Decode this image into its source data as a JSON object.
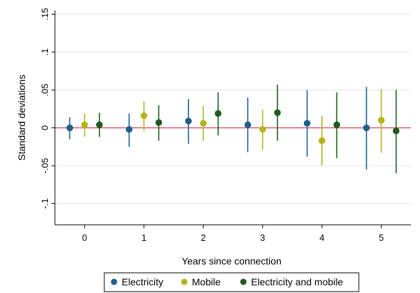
{
  "chart_data": {
    "type": "scatter",
    "title": "",
    "xlabel": "Years since connection",
    "ylabel": "Standard deviations",
    "x_ticks": [
      0,
      1,
      2,
      3,
      4,
      5
    ],
    "y_ticks": [
      -0.1,
      -0.05,
      0,
      0.05,
      0.1,
      0.15
    ],
    "y_tick_labels": [
      "-.1",
      "-.05",
      "0",
      ".05",
      ".1",
      ".15"
    ],
    "xlim": [
      -0.5,
      5.5
    ],
    "ylim": [
      -0.128,
      0.155
    ],
    "grid": "horizontal",
    "reference_line": {
      "y": 0,
      "color": "#d6334f"
    },
    "legend_position": "bottom",
    "series": [
      {
        "name": "Electricity",
        "color": "#1f5f8b",
        "offset": -0.25,
        "points": [
          {
            "x": 0,
            "y": 0.0,
            "lo": -0.015,
            "hi": 0.014
          },
          {
            "x": 1,
            "y": -0.002,
            "lo": -0.025,
            "hi": 0.019
          },
          {
            "x": 2,
            "y": 0.009,
            "lo": -0.021,
            "hi": 0.038
          },
          {
            "x": 3,
            "y": 0.004,
            "lo": -0.032,
            "hi": 0.04
          },
          {
            "x": 4,
            "y": 0.006,
            "lo": -0.038,
            "hi": 0.05
          },
          {
            "x": 5,
            "y": 0.0,
            "lo": -0.055,
            "hi": 0.054
          }
        ]
      },
      {
        "name": "Mobile",
        "color": "#b5b31b",
        "offset": 0.0,
        "points": [
          {
            "x": 0,
            "y": 0.004,
            "lo": -0.012,
            "hi": 0.019
          },
          {
            "x": 1,
            "y": 0.016,
            "lo": -0.004,
            "hi": 0.035
          },
          {
            "x": 2,
            "y": 0.006,
            "lo": -0.017,
            "hi": 0.029
          },
          {
            "x": 3,
            "y": -0.002,
            "lo": -0.029,
            "hi": 0.024
          },
          {
            "x": 4,
            "y": -0.017,
            "lo": -0.05,
            "hi": 0.016
          },
          {
            "x": 5,
            "y": 0.01,
            "lo": -0.033,
            "hi": 0.051
          }
        ]
      },
      {
        "name": "Electricity and mobile",
        "color": "#1e5c1e",
        "offset": 0.25,
        "points": [
          {
            "x": 0,
            "y": 0.004,
            "lo": -0.012,
            "hi": 0.02
          },
          {
            "x": 1,
            "y": 0.007,
            "lo": -0.017,
            "hi": 0.03
          },
          {
            "x": 2,
            "y": 0.019,
            "lo": -0.01,
            "hi": 0.047
          },
          {
            "x": 3,
            "y": 0.02,
            "lo": -0.017,
            "hi": 0.057
          },
          {
            "x": 4,
            "y": 0.004,
            "lo": -0.04,
            "hi": 0.047
          },
          {
            "x": 5,
            "y": -0.004,
            "lo": -0.06,
            "hi": 0.05
          }
        ]
      }
    ]
  }
}
